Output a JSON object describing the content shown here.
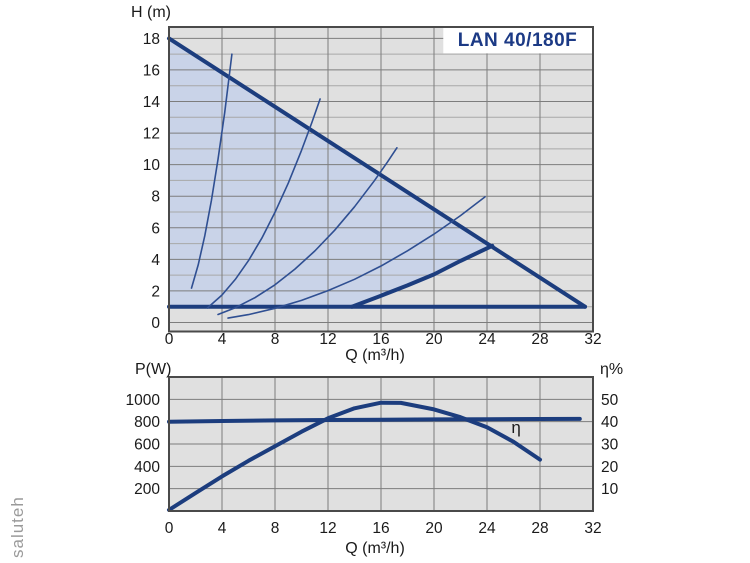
{
  "watermark": {
    "text": "saluteh"
  },
  "colors": {
    "page_bg": "#ffffff",
    "plot_bg": "#e0e0e0",
    "plot_border": "#4a4a4a",
    "grid_major": "#7d7d7d",
    "grid_minor": "#a8a8a8",
    "curve_thick": "#1c3d7e",
    "curve_thin": "#2f4f92",
    "field_fill": "#c9d3e8",
    "title_color": "#1c3a85",
    "tick_color": "#1a1a1a",
    "title_bg": "#ffffff"
  },
  "chart_data": [
    {
      "type": "line",
      "title": "LAN 40/180F",
      "xlabel": "Q (m³/h)",
      "ylabel": "H (m)",
      "xlim": [
        0,
        32
      ],
      "ylim": [
        -0.57,
        18.72
      ],
      "grid": "on",
      "x_ticks": [
        0,
        4,
        8,
        12,
        16,
        20,
        24,
        28,
        32
      ],
      "y_ticks": [
        0,
        2,
        4,
        6,
        8,
        10,
        12,
        14,
        16,
        18
      ],
      "x_gridlines": [
        4,
        8,
        12,
        16,
        20,
        24,
        28
      ],
      "y_gridlines": [
        0,
        1,
        2,
        3,
        4,
        5,
        6,
        7,
        8,
        9,
        10,
        11,
        12,
        13,
        14,
        15,
        16,
        17,
        18
      ],
      "title_box": {
        "x0": 20.7,
        "x1": 32,
        "y0": 17.05,
        "y1": 18.72
      },
      "operating_region": [
        [
          0,
          1.0
        ],
        [
          0,
          18.0
        ],
        [
          24.4,
          4.86
        ],
        [
          22,
          3.9
        ],
        [
          20,
          3.05
        ],
        [
          18,
          2.35
        ],
        [
          16,
          1.7
        ],
        [
          13.8,
          1.0
        ]
      ],
      "series": [
        {
          "name": "max-speed-curve",
          "style": "thick",
          "points": [
            [
              0,
              18.0
            ],
            [
              31.4,
              1.0
            ]
          ]
        },
        {
          "name": "min-head-line",
          "style": "thick",
          "points": [
            [
              0,
              1.0
            ],
            [
              31.4,
              1.0
            ]
          ]
        },
        {
          "name": "field-lower-boundary",
          "style": "thick",
          "points": [
            [
              13.8,
              1.0
            ],
            [
              16,
              1.7
            ],
            [
              18,
              2.35
            ],
            [
              20,
              3.05
            ],
            [
              22,
              3.9
            ],
            [
              24.4,
              4.86
            ]
          ]
        },
        {
          "name": "system-parabola-1",
          "style": "thin",
          "points": [
            [
              1.7,
              2.18
            ],
            [
              2.2,
              3.65
            ],
            [
              2.7,
              5.5
            ],
            [
              3.2,
              7.73
            ],
            [
              3.7,
              10.33
            ],
            [
              4.2,
              13.3
            ],
            [
              4.75,
              17.0
            ]
          ]
        },
        {
          "name": "system-parabola-2",
          "style": "thin",
          "points": [
            [
              2.9,
              0.92
            ],
            [
              4,
              1.74
            ],
            [
              5,
              2.73
            ],
            [
              6,
              3.92
            ],
            [
              7,
              5.34
            ],
            [
              8,
              6.98
            ],
            [
              9,
              8.83
            ],
            [
              10,
              10.9
            ],
            [
              10.8,
              12.71
            ],
            [
              11.4,
              14.16
            ]
          ]
        },
        {
          "name": "system-parabola-3",
          "style": "thin",
          "points": [
            [
              3.7,
              0.51
            ],
            [
              5,
              0.94
            ],
            [
              6.5,
              1.58
            ],
            [
              8,
              2.39
            ],
            [
              9.5,
              3.38
            ],
            [
              11,
              4.53
            ],
            [
              12.5,
              5.84
            ],
            [
              14,
              7.33
            ],
            [
              15.5,
              8.98
            ],
            [
              16.5,
              10.18
            ],
            [
              17.2,
              11.07
            ]
          ]
        },
        {
          "name": "system-parabola-4",
          "style": "thin",
          "points": [
            [
              4.45,
              0.28
            ],
            [
              6,
              0.5
            ],
            [
              8,
              0.9
            ],
            [
              10,
              1.4
            ],
            [
              12,
              2.02
            ],
            [
              14,
              2.74
            ],
            [
              16,
              3.58
            ],
            [
              18,
              4.54
            ],
            [
              20,
              5.6
            ],
            [
              22,
              6.77
            ],
            [
              23.85,
              7.96
            ]
          ]
        }
      ]
    },
    {
      "type": "line",
      "xlabel": "Q (m³/h)",
      "ylabel": "P(W)",
      "ylabel_right": "η%",
      "xlim": [
        0,
        32
      ],
      "ylim_left": [
        0,
        1200
      ],
      "ylim_right": [
        0,
        60
      ],
      "grid": "on",
      "x_ticks": [
        0,
        4,
        8,
        12,
        16,
        20,
        24,
        28,
        32
      ],
      "y_ticks_left": [
        200,
        400,
        600,
        800,
        1000
      ],
      "y_ticks_right": [
        10,
        20,
        30,
        40,
        50
      ],
      "x_gridlines": [
        4,
        8,
        12,
        16,
        20,
        24,
        28
      ],
      "y_gridlines_left": [
        200,
        400,
        600,
        800,
        1000
      ],
      "series": [
        {
          "name": "power-curve",
          "axis": "left",
          "style": "thick",
          "points": [
            [
              0,
              800
            ],
            [
              4,
              806
            ],
            [
              8,
              811
            ],
            [
              12,
              815
            ],
            [
              16,
              818
            ],
            [
              20,
              820
            ],
            [
              24,
              822
            ],
            [
              28,
              824
            ],
            [
              31,
              825
            ]
          ]
        },
        {
          "name": "efficiency-curve",
          "axis": "right",
          "style": "thick",
          "points": [
            [
              0,
              0.5
            ],
            [
              2,
              8
            ],
            [
              4,
              15.5
            ],
            [
              6,
              22.5
            ],
            [
              8,
              29
            ],
            [
              10,
              35.5
            ],
            [
              12,
              41.5
            ],
            [
              14,
              46
            ],
            [
              16,
              48.5
            ],
            [
              17.5,
              48.4
            ],
            [
              20,
              45.5
            ],
            [
              22,
              42
            ],
            [
              24,
              37.5
            ],
            [
              26,
              31
            ],
            [
              28,
              23
            ]
          ]
        }
      ],
      "annotations": [
        {
          "text": "η",
          "x": 26.2,
          "y_right": 35
        }
      ]
    }
  ]
}
